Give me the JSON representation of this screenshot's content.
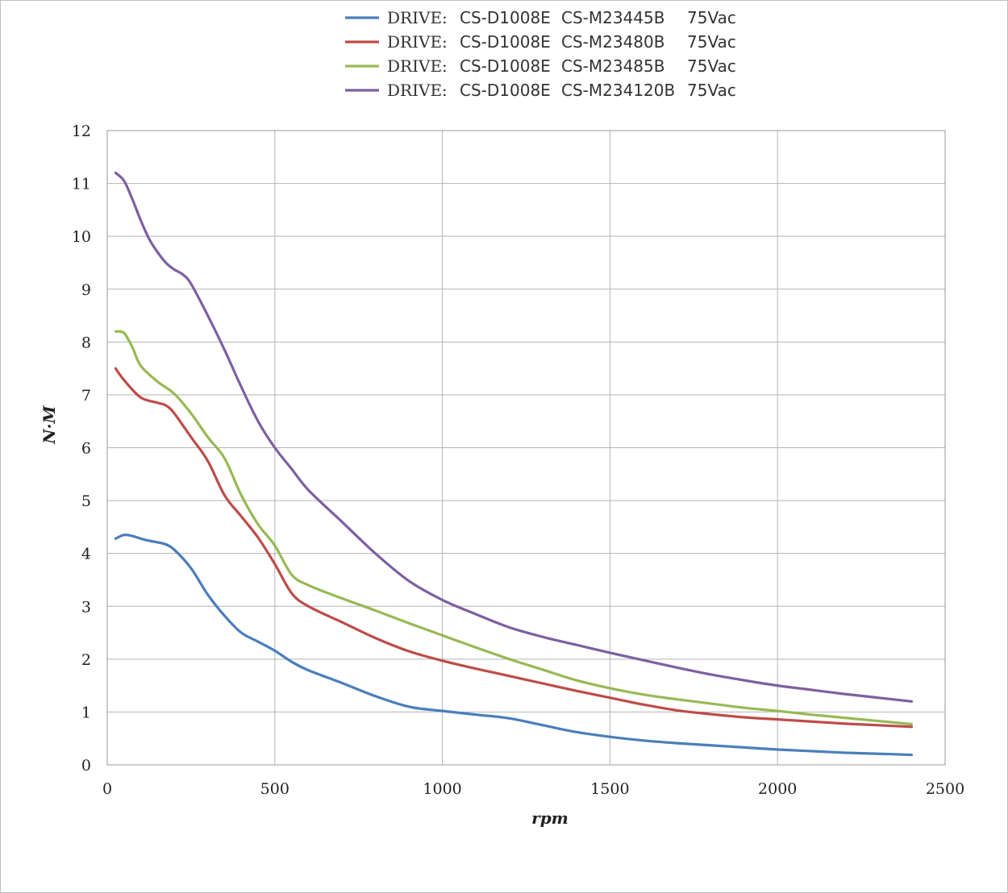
{
  "chart_data": {
    "type": "line",
    "title": "",
    "xlabel": "rpm",
    "ylabel": "N·M",
    "xlim": [
      0,
      2500
    ],
    "ylim": [
      0,
      12
    ],
    "x_ticks": [
      "0",
      "500",
      "1000",
      "1500",
      "2000",
      "2500"
    ],
    "y_ticks": [
      "0",
      "1",
      "2",
      "3",
      "4",
      "5",
      "6",
      "7",
      "8",
      "9",
      "10",
      "11",
      "12"
    ],
    "grid": true,
    "legend_position": "top-center",
    "series": [
      {
        "name": "CS-M23445B",
        "legend": {
          "prefix": "DRIVE:",
          "drive": "CS-D1008E",
          "motor": "CS-M23445B",
          "voltage": "75Vac"
        },
        "color": "#4a7ebb",
        "points": [
          [
            25,
            4.28
          ],
          [
            50,
            4.35
          ],
          [
            75,
            4.33
          ],
          [
            100,
            4.28
          ],
          [
            125,
            4.24
          ],
          [
            150,
            4.21
          ],
          [
            175,
            4.17
          ],
          [
            200,
            4.07
          ],
          [
            250,
            3.72
          ],
          [
            300,
            3.22
          ],
          [
            350,
            2.82
          ],
          [
            400,
            2.5
          ],
          [
            450,
            2.33
          ],
          [
            500,
            2.16
          ],
          [
            550,
            1.95
          ],
          [
            600,
            1.79
          ],
          [
            700,
            1.55
          ],
          [
            800,
            1.3
          ],
          [
            900,
            1.1
          ],
          [
            1000,
            1.02
          ],
          [
            1100,
            0.95
          ],
          [
            1200,
            0.88
          ],
          [
            1300,
            0.75
          ],
          [
            1400,
            0.62
          ],
          [
            1500,
            0.53
          ],
          [
            1600,
            0.46
          ],
          [
            1700,
            0.41
          ],
          [
            1800,
            0.37
          ],
          [
            1900,
            0.33
          ],
          [
            2000,
            0.29
          ],
          [
            2100,
            0.26
          ],
          [
            2200,
            0.23
          ],
          [
            2300,
            0.21
          ],
          [
            2400,
            0.19
          ]
        ]
      },
      {
        "name": "CS-M23480B",
        "legend": {
          "prefix": "DRIVE:",
          "drive": "CS-D1008E",
          "motor": "CS-M23480B",
          "voltage": "75Vac"
        },
        "color": "#be4b48",
        "points": [
          [
            25,
            7.5
          ],
          [
            50,
            7.28
          ],
          [
            100,
            6.95
          ],
          [
            150,
            6.85
          ],
          [
            175,
            6.8
          ],
          [
            200,
            6.65
          ],
          [
            250,
            6.2
          ],
          [
            300,
            5.75
          ],
          [
            350,
            5.1
          ],
          [
            400,
            4.7
          ],
          [
            450,
            4.3
          ],
          [
            500,
            3.8
          ],
          [
            550,
            3.25
          ],
          [
            600,
            3.0
          ],
          [
            700,
            2.7
          ],
          [
            800,
            2.4
          ],
          [
            900,
            2.15
          ],
          [
            1000,
            1.97
          ],
          [
            1100,
            1.82
          ],
          [
            1200,
            1.68
          ],
          [
            1300,
            1.54
          ],
          [
            1400,
            1.4
          ],
          [
            1500,
            1.27
          ],
          [
            1600,
            1.14
          ],
          [
            1700,
            1.03
          ],
          [
            1800,
            0.96
          ],
          [
            1900,
            0.9
          ],
          [
            2000,
            0.86
          ],
          [
            2100,
            0.82
          ],
          [
            2200,
            0.78
          ],
          [
            2300,
            0.75
          ],
          [
            2400,
            0.72
          ]
        ]
      },
      {
        "name": "CS-M23485B",
        "legend": {
          "prefix": "DRIVE:",
          "drive": "CS-D1008E",
          "motor": "CS-M23485B",
          "voltage": "75Vac"
        },
        "color": "#98b954",
        "points": [
          [
            25,
            8.2
          ],
          [
            50,
            8.17
          ],
          [
            75,
            7.9
          ],
          [
            100,
            7.55
          ],
          [
            150,
            7.25
          ],
          [
            200,
            7.02
          ],
          [
            250,
            6.65
          ],
          [
            300,
            6.2
          ],
          [
            350,
            5.8
          ],
          [
            400,
            5.1
          ],
          [
            450,
            4.55
          ],
          [
            500,
            4.15
          ],
          [
            550,
            3.6
          ],
          [
            600,
            3.4
          ],
          [
            700,
            3.15
          ],
          [
            800,
            2.92
          ],
          [
            900,
            2.68
          ],
          [
            1000,
            2.45
          ],
          [
            1100,
            2.22
          ],
          [
            1200,
            2.0
          ],
          [
            1300,
            1.8
          ],
          [
            1400,
            1.6
          ],
          [
            1500,
            1.45
          ],
          [
            1600,
            1.33
          ],
          [
            1700,
            1.24
          ],
          [
            1800,
            1.16
          ],
          [
            1900,
            1.08
          ],
          [
            2000,
            1.02
          ],
          [
            2100,
            0.95
          ],
          [
            2200,
            0.89
          ],
          [
            2300,
            0.83
          ],
          [
            2400,
            0.77
          ]
        ]
      },
      {
        "name": "CS-M234120B",
        "legend": {
          "prefix": "DRIVE:",
          "drive": "CS-D1008E",
          "motor": "CS-M234120B",
          "voltage": "75Vac"
        },
        "color": "#7d60a0",
        "points": [
          [
            25,
            11.2
          ],
          [
            50,
            11.05
          ],
          [
            75,
            10.7
          ],
          [
            100,
            10.3
          ],
          [
            125,
            9.95
          ],
          [
            150,
            9.7
          ],
          [
            175,
            9.5
          ],
          [
            200,
            9.37
          ],
          [
            225,
            9.28
          ],
          [
            250,
            9.1
          ],
          [
            300,
            8.5
          ],
          [
            350,
            7.85
          ],
          [
            400,
            7.15
          ],
          [
            450,
            6.5
          ],
          [
            500,
            6.0
          ],
          [
            550,
            5.6
          ],
          [
            600,
            5.2
          ],
          [
            700,
            4.6
          ],
          [
            800,
            4.0
          ],
          [
            900,
            3.48
          ],
          [
            1000,
            3.12
          ],
          [
            1100,
            2.85
          ],
          [
            1200,
            2.6
          ],
          [
            1300,
            2.42
          ],
          [
            1400,
            2.27
          ],
          [
            1500,
            2.12
          ],
          [
            1600,
            1.98
          ],
          [
            1700,
            1.84
          ],
          [
            1800,
            1.71
          ],
          [
            1900,
            1.6
          ],
          [
            2000,
            1.5
          ],
          [
            2100,
            1.42
          ],
          [
            2200,
            1.34
          ],
          [
            2300,
            1.27
          ],
          [
            2400,
            1.2
          ]
        ]
      }
    ]
  }
}
